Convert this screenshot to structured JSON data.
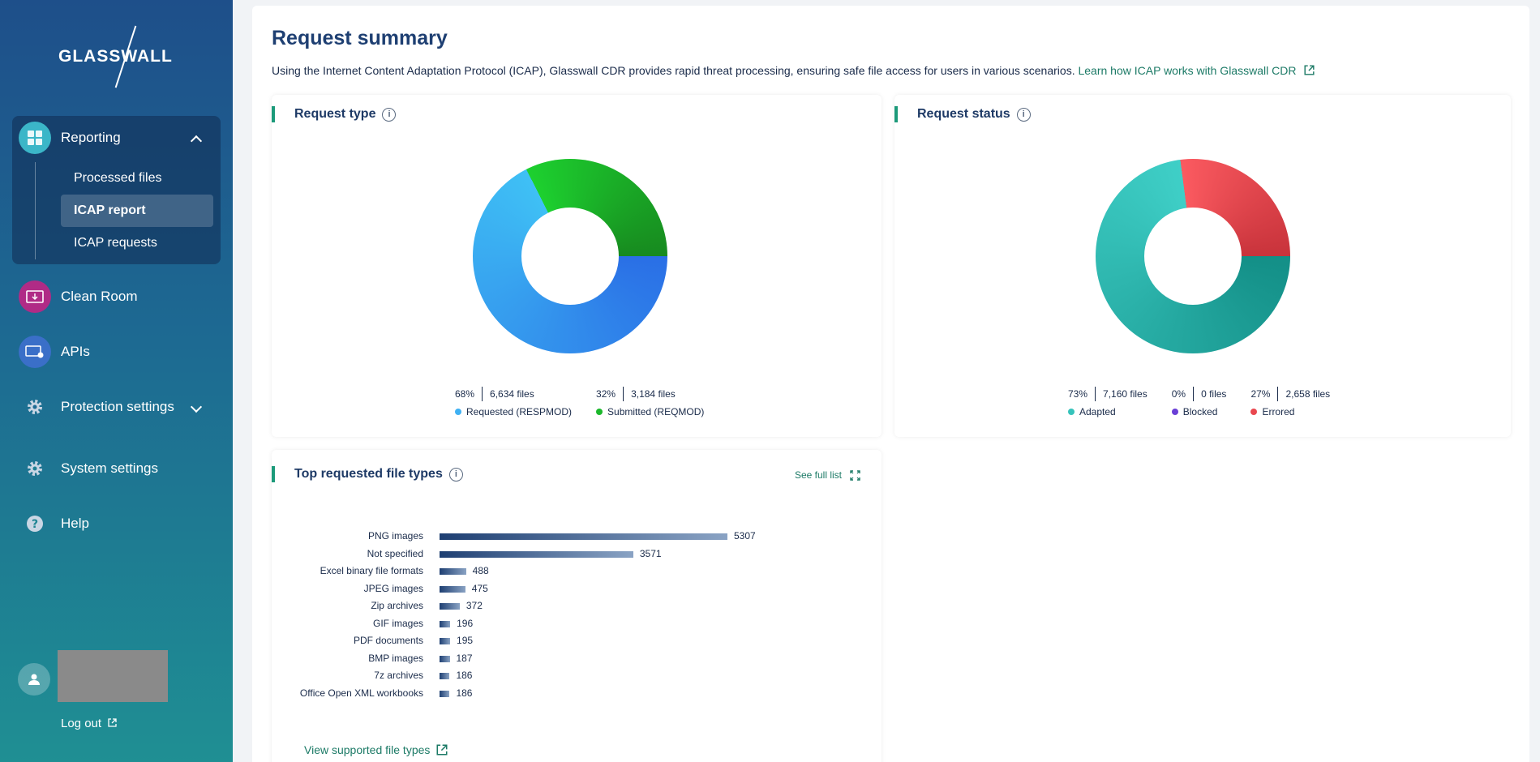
{
  "sidebar": {
    "logo_text": "GLASSWALL",
    "reporting": {
      "label": "Reporting",
      "items": [
        "Processed files",
        "ICAP report",
        "ICAP requests"
      ]
    },
    "clean_room": "Clean Room",
    "apis": "APIs",
    "protection_settings": "Protection settings",
    "system_settings": "System settings",
    "help": "Help",
    "logout": "Log out"
  },
  "main": {
    "title": "Request summary",
    "intro_text": "Using the Internet Content Adaptation Protocol (ICAP), Glasswall CDR provides rapid threat processing, ensuring safe file access for users in various scenarios. ",
    "intro_link": "Learn how ICAP works with Glasswall CDR",
    "request_type": {
      "title": "Request type",
      "legend": [
        {
          "pct": "68%",
          "count": "6,634 files",
          "label": "Requested (RESPMOD)",
          "color": "#3fb1f3"
        },
        {
          "pct": "32%",
          "count": "3,184 files",
          "label": "Submitted (REQMOD)",
          "color": "#1cb82c"
        }
      ]
    },
    "request_status": {
      "title": "Request status",
      "legend": [
        {
          "pct": "73%",
          "count": "7,160 files",
          "label": "Adapted",
          "color": "#36c3bb"
        },
        {
          "pct": "0%",
          "count": "0 files",
          "label": "Blocked",
          "color": "#6a3fd6"
        },
        {
          "pct": "27%",
          "count": "2,658 files",
          "label": "Errored",
          "color": "#e9474f"
        }
      ]
    },
    "top_file_types": {
      "title": "Top requested file types",
      "see_full": "See full list",
      "view_supported": "View supported file types"
    }
  },
  "chart_data": [
    {
      "type": "pie",
      "title": "Request type",
      "categories": [
        "Requested (RESPMOD)",
        "Submitted (REQMOD)"
      ],
      "values": [
        6634,
        3184
      ],
      "percent": [
        68,
        32
      ]
    },
    {
      "type": "pie",
      "title": "Request status",
      "categories": [
        "Adapted",
        "Blocked",
        "Errored"
      ],
      "values": [
        7160,
        0,
        2658
      ],
      "percent": [
        73,
        0,
        27
      ]
    },
    {
      "type": "bar",
      "title": "Top requested file types",
      "categories": [
        "PNG images",
        "Not specified",
        "Excel binary file formats",
        "JPEG images",
        "Zip archives",
        "GIF images",
        "PDF documents",
        "BMP images",
        "7z archives",
        "Office Open XML workbooks"
      ],
      "values": [
        5307,
        3571,
        488,
        475,
        372,
        196,
        195,
        187,
        186,
        186
      ]
    }
  ]
}
